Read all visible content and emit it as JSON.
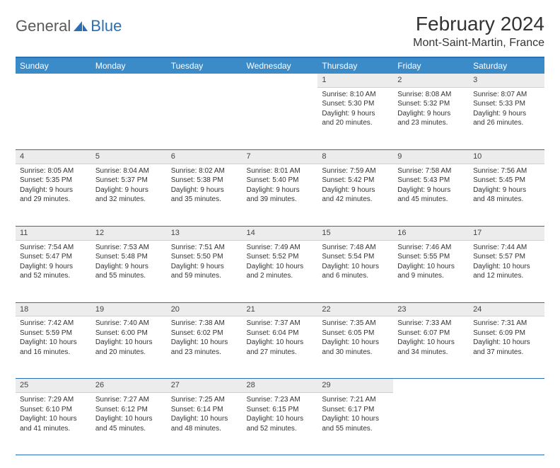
{
  "logo": {
    "textA": "General",
    "textB": "Blue"
  },
  "title": "February 2024",
  "location": "Mont-Saint-Martin, France",
  "colors": {
    "header_bg": "#3b8bc9",
    "header_border": "#2a6fb5",
    "daynum_bg": "#ececec",
    "text": "#333333"
  },
  "weekdays": [
    "Sunday",
    "Monday",
    "Tuesday",
    "Wednesday",
    "Thursday",
    "Friday",
    "Saturday"
  ],
  "weeks": [
    [
      null,
      null,
      null,
      null,
      {
        "n": "1",
        "sr": "Sunrise: 8:10 AM",
        "ss": "Sunset: 5:30 PM",
        "d1": "Daylight: 9 hours",
        "d2": "and 20 minutes."
      },
      {
        "n": "2",
        "sr": "Sunrise: 8:08 AM",
        "ss": "Sunset: 5:32 PM",
        "d1": "Daylight: 9 hours",
        "d2": "and 23 minutes."
      },
      {
        "n": "3",
        "sr": "Sunrise: 8:07 AM",
        "ss": "Sunset: 5:33 PM",
        "d1": "Daylight: 9 hours",
        "d2": "and 26 minutes."
      }
    ],
    [
      {
        "n": "4",
        "sr": "Sunrise: 8:05 AM",
        "ss": "Sunset: 5:35 PM",
        "d1": "Daylight: 9 hours",
        "d2": "and 29 minutes."
      },
      {
        "n": "5",
        "sr": "Sunrise: 8:04 AM",
        "ss": "Sunset: 5:37 PM",
        "d1": "Daylight: 9 hours",
        "d2": "and 32 minutes."
      },
      {
        "n": "6",
        "sr": "Sunrise: 8:02 AM",
        "ss": "Sunset: 5:38 PM",
        "d1": "Daylight: 9 hours",
        "d2": "and 35 minutes."
      },
      {
        "n": "7",
        "sr": "Sunrise: 8:01 AM",
        "ss": "Sunset: 5:40 PM",
        "d1": "Daylight: 9 hours",
        "d2": "and 39 minutes."
      },
      {
        "n": "8",
        "sr": "Sunrise: 7:59 AM",
        "ss": "Sunset: 5:42 PM",
        "d1": "Daylight: 9 hours",
        "d2": "and 42 minutes."
      },
      {
        "n": "9",
        "sr": "Sunrise: 7:58 AM",
        "ss": "Sunset: 5:43 PM",
        "d1": "Daylight: 9 hours",
        "d2": "and 45 minutes."
      },
      {
        "n": "10",
        "sr": "Sunrise: 7:56 AM",
        "ss": "Sunset: 5:45 PM",
        "d1": "Daylight: 9 hours",
        "d2": "and 48 minutes."
      }
    ],
    [
      {
        "n": "11",
        "sr": "Sunrise: 7:54 AM",
        "ss": "Sunset: 5:47 PM",
        "d1": "Daylight: 9 hours",
        "d2": "and 52 minutes."
      },
      {
        "n": "12",
        "sr": "Sunrise: 7:53 AM",
        "ss": "Sunset: 5:48 PM",
        "d1": "Daylight: 9 hours",
        "d2": "and 55 minutes."
      },
      {
        "n": "13",
        "sr": "Sunrise: 7:51 AM",
        "ss": "Sunset: 5:50 PM",
        "d1": "Daylight: 9 hours",
        "d2": "and 59 minutes."
      },
      {
        "n": "14",
        "sr": "Sunrise: 7:49 AM",
        "ss": "Sunset: 5:52 PM",
        "d1": "Daylight: 10 hours",
        "d2": "and 2 minutes."
      },
      {
        "n": "15",
        "sr": "Sunrise: 7:48 AM",
        "ss": "Sunset: 5:54 PM",
        "d1": "Daylight: 10 hours",
        "d2": "and 6 minutes."
      },
      {
        "n": "16",
        "sr": "Sunrise: 7:46 AM",
        "ss": "Sunset: 5:55 PM",
        "d1": "Daylight: 10 hours",
        "d2": "and 9 minutes."
      },
      {
        "n": "17",
        "sr": "Sunrise: 7:44 AM",
        "ss": "Sunset: 5:57 PM",
        "d1": "Daylight: 10 hours",
        "d2": "and 12 minutes."
      }
    ],
    [
      {
        "n": "18",
        "sr": "Sunrise: 7:42 AM",
        "ss": "Sunset: 5:59 PM",
        "d1": "Daylight: 10 hours",
        "d2": "and 16 minutes."
      },
      {
        "n": "19",
        "sr": "Sunrise: 7:40 AM",
        "ss": "Sunset: 6:00 PM",
        "d1": "Daylight: 10 hours",
        "d2": "and 20 minutes."
      },
      {
        "n": "20",
        "sr": "Sunrise: 7:38 AM",
        "ss": "Sunset: 6:02 PM",
        "d1": "Daylight: 10 hours",
        "d2": "and 23 minutes."
      },
      {
        "n": "21",
        "sr": "Sunrise: 7:37 AM",
        "ss": "Sunset: 6:04 PM",
        "d1": "Daylight: 10 hours",
        "d2": "and 27 minutes."
      },
      {
        "n": "22",
        "sr": "Sunrise: 7:35 AM",
        "ss": "Sunset: 6:05 PM",
        "d1": "Daylight: 10 hours",
        "d2": "and 30 minutes."
      },
      {
        "n": "23",
        "sr": "Sunrise: 7:33 AM",
        "ss": "Sunset: 6:07 PM",
        "d1": "Daylight: 10 hours",
        "d2": "and 34 minutes."
      },
      {
        "n": "24",
        "sr": "Sunrise: 7:31 AM",
        "ss": "Sunset: 6:09 PM",
        "d1": "Daylight: 10 hours",
        "d2": "and 37 minutes."
      }
    ],
    [
      {
        "n": "25",
        "sr": "Sunrise: 7:29 AM",
        "ss": "Sunset: 6:10 PM",
        "d1": "Daylight: 10 hours",
        "d2": "and 41 minutes."
      },
      {
        "n": "26",
        "sr": "Sunrise: 7:27 AM",
        "ss": "Sunset: 6:12 PM",
        "d1": "Daylight: 10 hours",
        "d2": "and 45 minutes."
      },
      {
        "n": "27",
        "sr": "Sunrise: 7:25 AM",
        "ss": "Sunset: 6:14 PM",
        "d1": "Daylight: 10 hours",
        "d2": "and 48 minutes."
      },
      {
        "n": "28",
        "sr": "Sunrise: 7:23 AM",
        "ss": "Sunset: 6:15 PM",
        "d1": "Daylight: 10 hours",
        "d2": "and 52 minutes."
      },
      {
        "n": "29",
        "sr": "Sunrise: 7:21 AM",
        "ss": "Sunset: 6:17 PM",
        "d1": "Daylight: 10 hours",
        "d2": "and 55 minutes."
      },
      null,
      null
    ]
  ]
}
